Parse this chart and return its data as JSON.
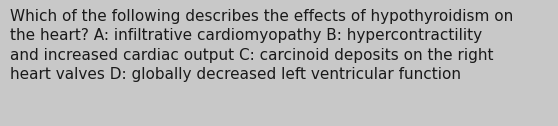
{
  "lines": [
    "Which of the following describes the effects of hypothyroidism on",
    "the heart? A: infiltrative cardiomyopathy B: hypercontractility",
    "and increased cardiac output C: carcinoid deposits on the right",
    "heart valves D: globally decreased left ventricular function"
  ],
  "background_color": "#c8c8c8",
  "text_color": "#1a1a1a",
  "font_size": 11.0,
  "font_family": "DejaVu Sans",
  "fig_width": 5.58,
  "fig_height": 1.26,
  "dpi": 100
}
